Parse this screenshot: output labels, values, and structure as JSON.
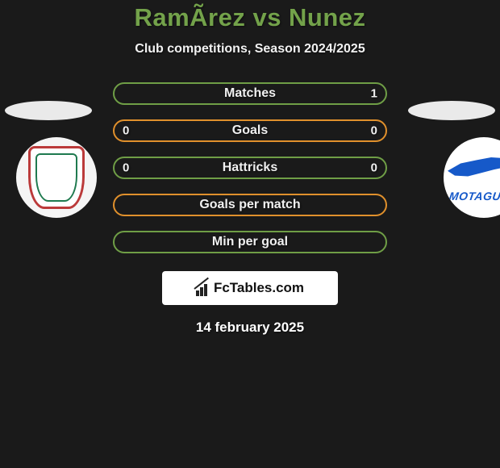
{
  "title": {
    "text": "RamÃ­rez vs Nunez",
    "color": "#73a24a",
    "fontsize": 31
  },
  "subtitle": {
    "text": "Club competitions, Season 2024/2025",
    "color": "#f2f2f2",
    "fontsize": 16
  },
  "date": {
    "text": "14 february 2025",
    "color": "#f2f2f2"
  },
  "footer": {
    "brand": "FcTables.com"
  },
  "colors": {
    "bg": "#1a1a1a",
    "row_fill": "#1a1a1a",
    "border_green": "#6f9e46",
    "border_orange": "#e0902c",
    "text": "#f0f0f0"
  },
  "players": {
    "left": {
      "ellipse_color": "#eaeaea",
      "crest_bg": "#f5f5f5"
    },
    "right": {
      "ellipse_color": "#eaeaea",
      "crest_bg": "#ffffff",
      "team_label": "MOTAGUA"
    }
  },
  "rows": [
    {
      "label": "Matches",
      "left": "",
      "right": "1",
      "border": "#6f9e46"
    },
    {
      "label": "Goals",
      "left": "0",
      "right": "0",
      "border": "#e0902c"
    },
    {
      "label": "Hattricks",
      "left": "0",
      "right": "0",
      "border": "#6f9e46"
    },
    {
      "label": "Goals per match",
      "left": "",
      "right": "",
      "border": "#e0902c"
    },
    {
      "label": "Min per goal",
      "left": "",
      "right": "",
      "border": "#6f9e46"
    }
  ]
}
